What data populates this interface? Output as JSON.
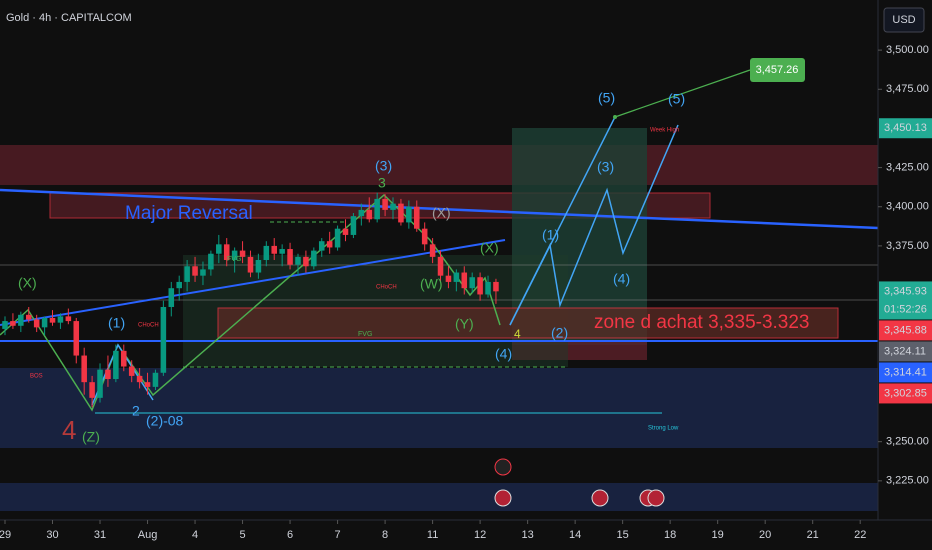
{
  "chart_data": {
    "type": "candlestick",
    "title": "Gold · 4h · CAPITALCOM",
    "currency": "USD",
    "up_color": "#089981",
    "down_color": "#f23645",
    "candles": {
      "open": [
        3322,
        3327,
        3324,
        3331,
        3328,
        3323,
        3329,
        3326,
        3330,
        3327,
        3305,
        3288,
        3278,
        3296,
        3290,
        3308,
        3298,
        3292,
        3288,
        3285,
        3294,
        3336,
        3348,
        3352,
        3362,
        3356,
        3360,
        3370,
        3376,
        3366,
        3372,
        3368,
        3358,
        3366,
        3375,
        3370,
        3373,
        3363,
        3368,
        3362,
        3372,
        3378,
        3374,
        3386,
        3382,
        3394,
        3398,
        3392,
        3405,
        3398,
        3402,
        3390,
        3400,
        3386,
        3376,
        3368,
        3356,
        3352,
        3358,
        3348,
        3355,
        3344,
        3352
      ],
      "high": [
        3330,
        3332,
        3333,
        3336,
        3331,
        3330,
        3334,
        3332,
        3335,
        3329,
        3310,
        3292,
        3300,
        3305,
        3312,
        3312,
        3302,
        3297,
        3294,
        3296,
        3340,
        3352,
        3356,
        3366,
        3368,
        3365,
        3372,
        3382,
        3380,
        3374,
        3378,
        3372,
        3370,
        3378,
        3380,
        3376,
        3377,
        3370,
        3372,
        3374,
        3380,
        3384,
        3388,
        3392,
        3396,
        3402,
        3406,
        3409,
        3408,
        3406,
        3405,
        3404,
        3404,
        3390,
        3380,
        3372,
        3362,
        3360,
        3362,
        3358,
        3358,
        3356,
        3354
      ],
      "low": [
        3318,
        3322,
        3320,
        3326,
        3320,
        3318,
        3324,
        3322,
        3325,
        3300,
        3280,
        3272,
        3275,
        3285,
        3288,
        3295,
        3288,
        3284,
        3280,
        3283,
        3292,
        3330,
        3340,
        3346,
        3352,
        3350,
        3356,
        3364,
        3362,
        3358,
        3364,
        3355,
        3354,
        3362,
        3366,
        3362,
        3360,
        3356,
        3358,
        3360,
        3368,
        3370,
        3372,
        3378,
        3380,
        3388,
        3390,
        3390,
        3394,
        3392,
        3388,
        3386,
        3384,
        3372,
        3364,
        3352,
        3348,
        3346,
        3344,
        3345,
        3340,
        3342,
        3338
      ],
      "close": [
        3327,
        3324,
        3331,
        3328,
        3323,
        3329,
        3326,
        3330,
        3327,
        3305,
        3288,
        3278,
        3296,
        3290,
        3308,
        3298,
        3292,
        3288,
        3285,
        3294,
        3336,
        3348,
        3352,
        3362,
        3356,
        3360,
        3370,
        3376,
        3366,
        3372,
        3368,
        3358,
        3366,
        3375,
        3370,
        3373,
        3363,
        3368,
        3362,
        3372,
        3378,
        3374,
        3386,
        3382,
        3394,
        3398,
        3392,
        3405,
        3398,
        3402,
        3390,
        3400,
        3386,
        3376,
        3368,
        3356,
        3352,
        3358,
        3348,
        3355,
        3344,
        3352,
        3346
      ]
    },
    "xlim": [
      0,
      110.5
    ],
    "xticks": [
      {
        "value": 0,
        "label": "29"
      },
      {
        "value": 6,
        "label": "30"
      },
      {
        "value": 12,
        "label": "31"
      },
      {
        "value": 18,
        "label": "Aug"
      },
      {
        "value": 24,
        "label": "4"
      },
      {
        "value": 30,
        "label": "5"
      },
      {
        "value": 36,
        "label": "6"
      },
      {
        "value": 42,
        "label": "7"
      },
      {
        "value": 48,
        "label": "8"
      },
      {
        "value": 54,
        "label": "11"
      },
      {
        "value": 60,
        "label": "12"
      },
      {
        "value": 66,
        "label": "13"
      },
      {
        "value": 72,
        "label": "14"
      },
      {
        "value": 78,
        "label": "15"
      },
      {
        "value": 84,
        "label": "18"
      },
      {
        "value": 90,
        "label": "19"
      },
      {
        "value": 96,
        "label": "20"
      },
      {
        "value": 102,
        "label": "21"
      },
      {
        "value": 108,
        "label": "22"
      }
    ],
    "ylim": [
      3200,
      3532
    ],
    "yticks": [
      {
        "value": 3500,
        "label": "3,500.00"
      },
      {
        "value": 3475,
        "label": "3,475.00"
      },
      {
        "value": 3425,
        "label": "3,425.00"
      },
      {
        "value": 3400,
        "label": "3,400.00"
      },
      {
        "value": 3375,
        "label": "3,375.00"
      },
      {
        "value": 3250,
        "label": "3,250.00"
      },
      {
        "value": 3225,
        "label": "3,225.00"
      }
    ],
    "grid": false,
    "price_tags": [
      {
        "value": 3450.13,
        "label": "3,450.13",
        "color": "#22ab94"
      },
      {
        "value": 3345.93,
        "label": "3,345.93",
        "color": "#22ab94",
        "countdown": "01:52:26"
      },
      {
        "value": 3345.88,
        "label": "3,345.88",
        "color": "#f23645"
      },
      {
        "value": 3324.11,
        "label": "3,324.11",
        "color": "#5d606b"
      },
      {
        "value": 3314.41,
        "label": "3,314.41",
        "color": "#2962ff"
      },
      {
        "value": 3302.85,
        "label": "3,302.85",
        "color": "#f23645"
      }
    ],
    "annotations": {
      "reversal": "Major Reversal",
      "zone": "zone d achat 3,335-3.323",
      "target": "3,457.26",
      "week_high": "Week High",
      "strong_low": "Strong Low",
      "bos": "BOS",
      "fvg_1": "FVG",
      "fvg_2": "FVG",
      "choch_1": "CHoCH",
      "choch_2": "CHoCH",
      "waves": [
        "(X)",
        "(1)",
        "2",
        "(2)-08",
        "4",
        "(Z)",
        "(3)",
        "3",
        "(X)",
        "(W)",
        "(X)",
        "(Y)",
        "(4)",
        "4",
        "(1)",
        "(2)",
        "(3)",
        "(4)",
        "(5)",
        "(5)"
      ]
    }
  }
}
